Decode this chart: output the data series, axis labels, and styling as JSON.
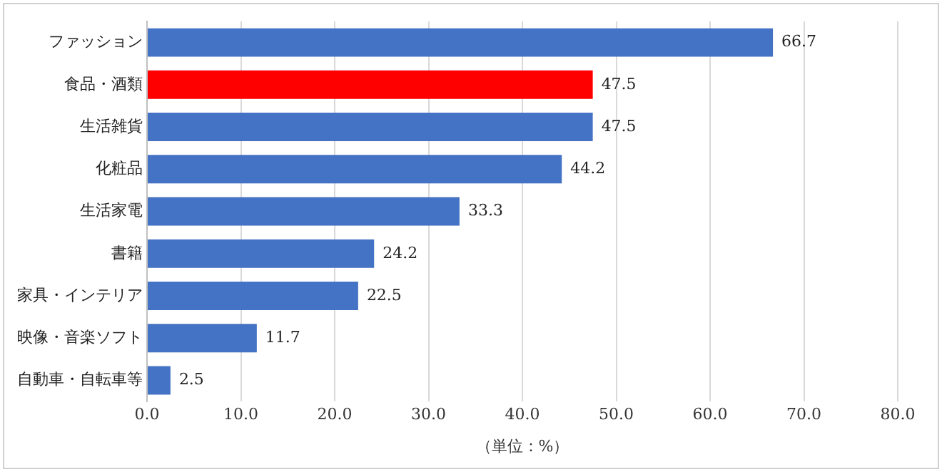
{
  "chart_data": {
    "type": "bar",
    "orientation": "horizontal",
    "categories": [
      "ファッション",
      "食品・酒類",
      "生活雑貨",
      "化粧品",
      "生活家電",
      "書籍",
      "家具・インテリア",
      "映像・音楽ソフト",
      "自動車・自転車等"
    ],
    "values": [
      66.7,
      47.5,
      47.5,
      44.2,
      33.3,
      24.2,
      22.5,
      11.7,
      2.5
    ],
    "colors": [
      "#4472c4",
      "#ff0000",
      "#4472c4",
      "#4472c4",
      "#4472c4",
      "#4472c4",
      "#4472c4",
      "#4472c4",
      "#4472c4"
    ],
    "xlim": [
      0,
      80
    ],
    "xticks": [
      {
        "value": 0,
        "label": "0.0"
      },
      {
        "value": 10,
        "label": "10.0"
      },
      {
        "value": 20,
        "label": "20.0"
      },
      {
        "value": 30,
        "label": "30.0"
      },
      {
        "value": 40,
        "label": "40.0"
      },
      {
        "value": 50,
        "label": "50.0"
      },
      {
        "value": 60,
        "label": "60.0"
      },
      {
        "value": 70,
        "label": "70.0"
      },
      {
        "value": 80,
        "label": "80.0"
      }
    ],
    "xlabel": "（単位：%）",
    "grid": "x",
    "data_labels": true,
    "legend": false
  }
}
